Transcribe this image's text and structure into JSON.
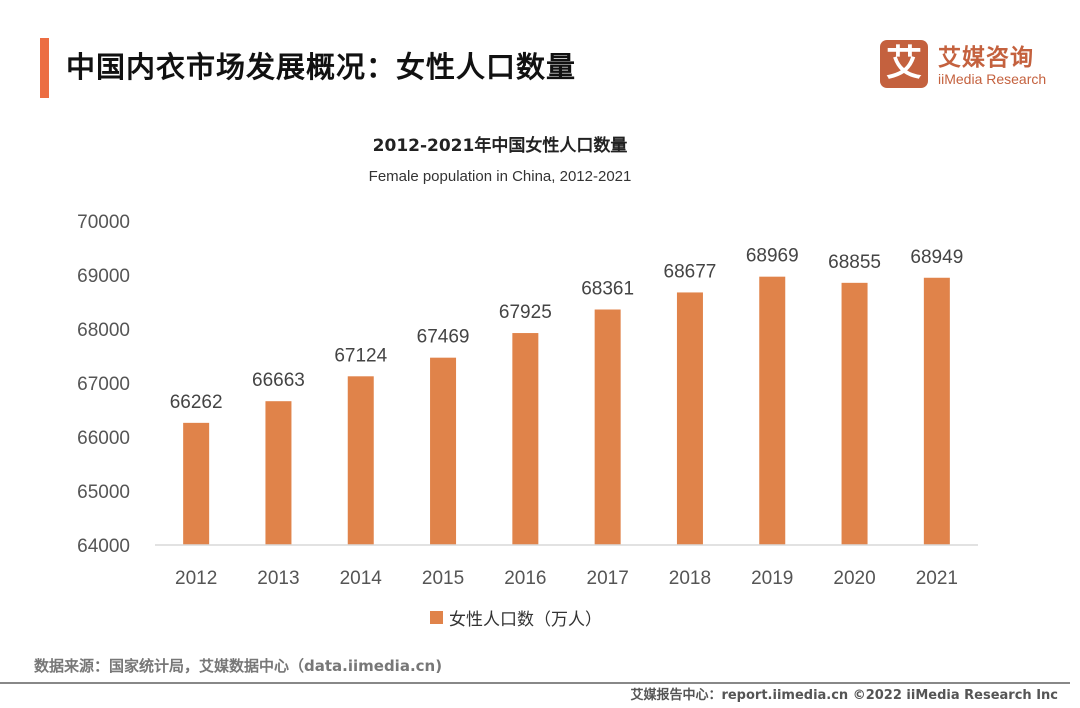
{
  "header": {
    "title": "中国内衣市场发展概况：女性人口数量",
    "accent_color": "#ec6d42"
  },
  "logo": {
    "mark": "艾",
    "name_cn": "艾媒咨询",
    "name_en": "iiMedia Research",
    "color": "#c4613e"
  },
  "chart_data": {
    "type": "bar",
    "title": "2012-2021年中国女性人口数量",
    "subtitle": "Female population in China, 2012-2021",
    "categories": [
      "2012",
      "2013",
      "2014",
      "2015",
      "2016",
      "2017",
      "2018",
      "2019",
      "2020",
      "2021"
    ],
    "series": [
      {
        "name": "女性人口数（万人）",
        "color": "#e0834a",
        "values": [
          66262,
          66663,
          67124,
          67469,
          67925,
          68361,
          68677,
          68969,
          68855,
          68949
        ]
      }
    ],
    "xlabel": "",
    "ylabel": "",
    "ylim": [
      64000,
      70000
    ],
    "yticks": [
      64000,
      65000,
      66000,
      67000,
      68000,
      69000,
      70000
    ],
    "grid": false,
    "legend": "bottom-center",
    "data_labels": true
  },
  "footer": {
    "source": "数据来源：国家统计局，艾媒数据中心（data.iimedia.cn)",
    "credit": "艾媒报告中心：report.iimedia.cn   ©2022  iiMedia Research  Inc"
  }
}
